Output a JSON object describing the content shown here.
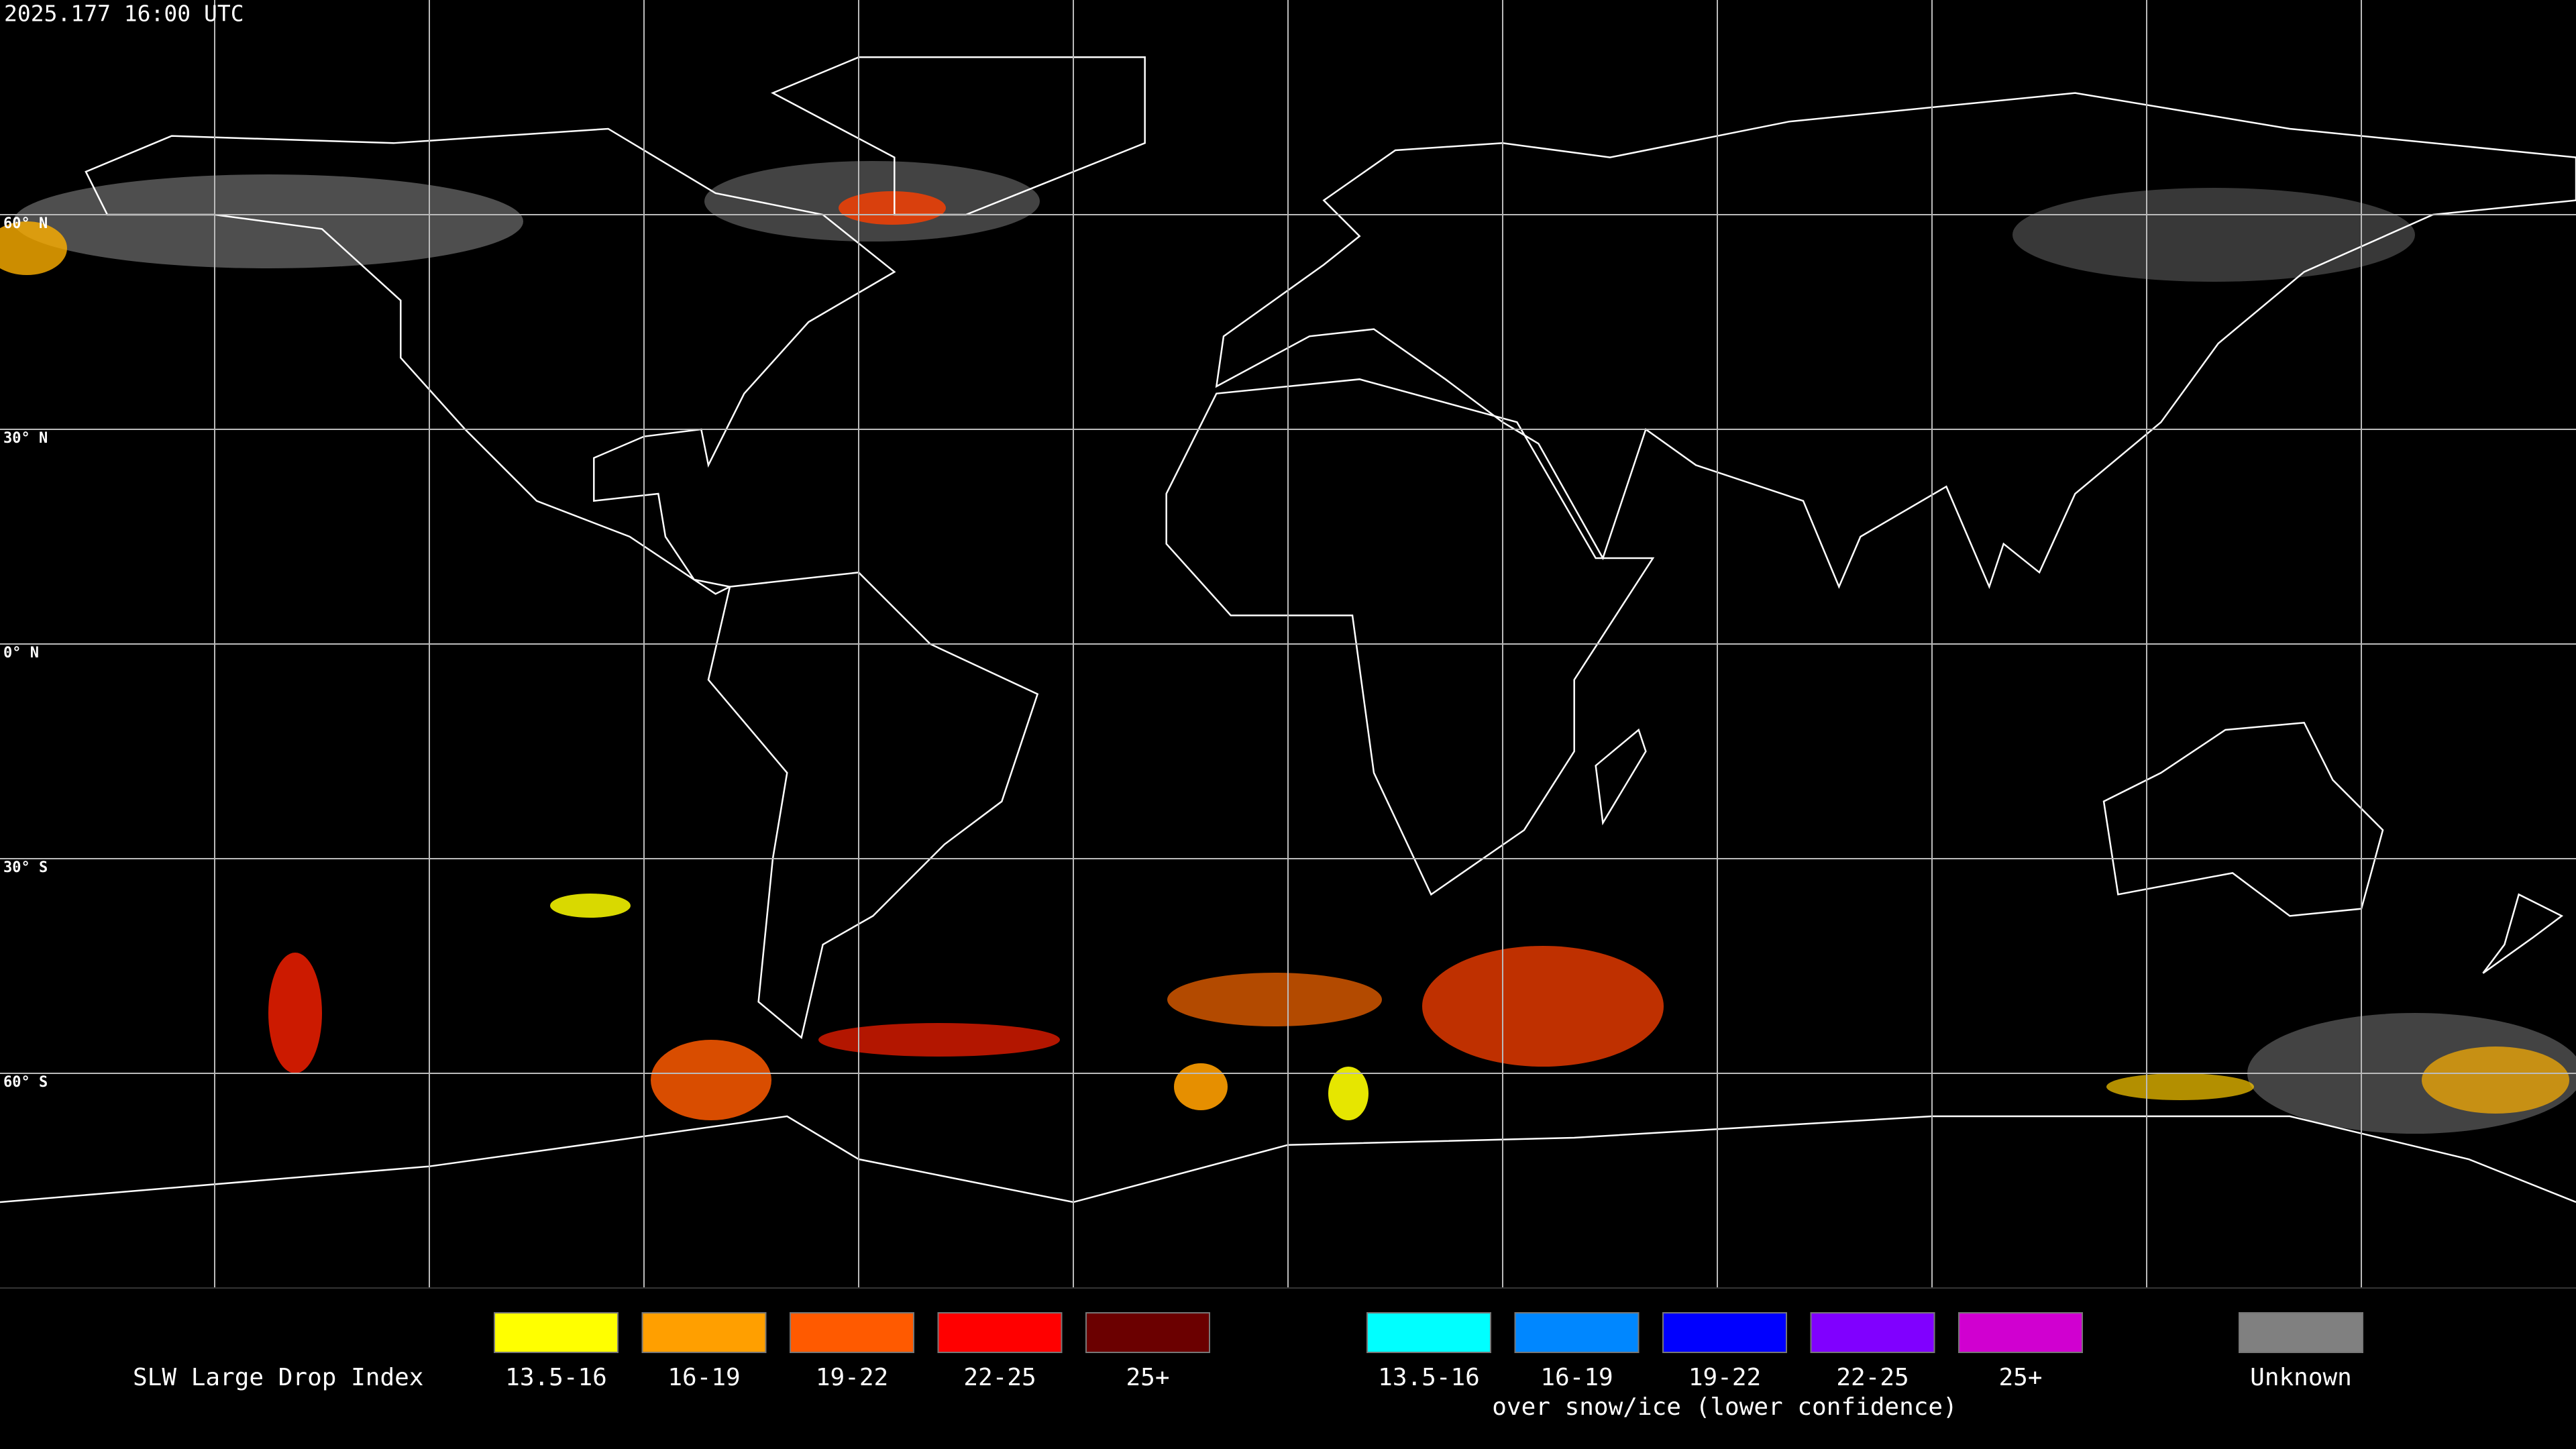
{
  "header": {
    "timestamp": "2025.177 16:00 UTC"
  },
  "map": {
    "lat_labels": [
      "60° N",
      "30° N",
      "0° N",
      "30° S",
      "60° S"
    ]
  },
  "legend": {
    "title": "SLW Large Drop Index",
    "groups": [
      {
        "items": [
          {
            "label": "13.5-16",
            "color": "#ffff00"
          },
          {
            "label": "16-19",
            "color": "#ff9f00"
          },
          {
            "label": "19-22",
            "color": "#ff5a00"
          },
          {
            "label": "22-25",
            "color": "#ff0000"
          },
          {
            "label": "25+",
            "color": "#6b0000"
          }
        ]
      },
      {
        "items": [
          {
            "label": "13.5-16",
            "color": "#00ffff"
          },
          {
            "label": "16-19",
            "color": "#0087ff"
          },
          {
            "label": "19-22",
            "color": "#0000ff"
          },
          {
            "label": "22-25",
            "color": "#8000ff"
          },
          {
            "label": "25+",
            "color": "#d000d0"
          }
        ],
        "caption": "over snow/ice (lower confidence)"
      }
    ],
    "unknown": {
      "label": "Unknown",
      "color": "#808080"
    }
  }
}
